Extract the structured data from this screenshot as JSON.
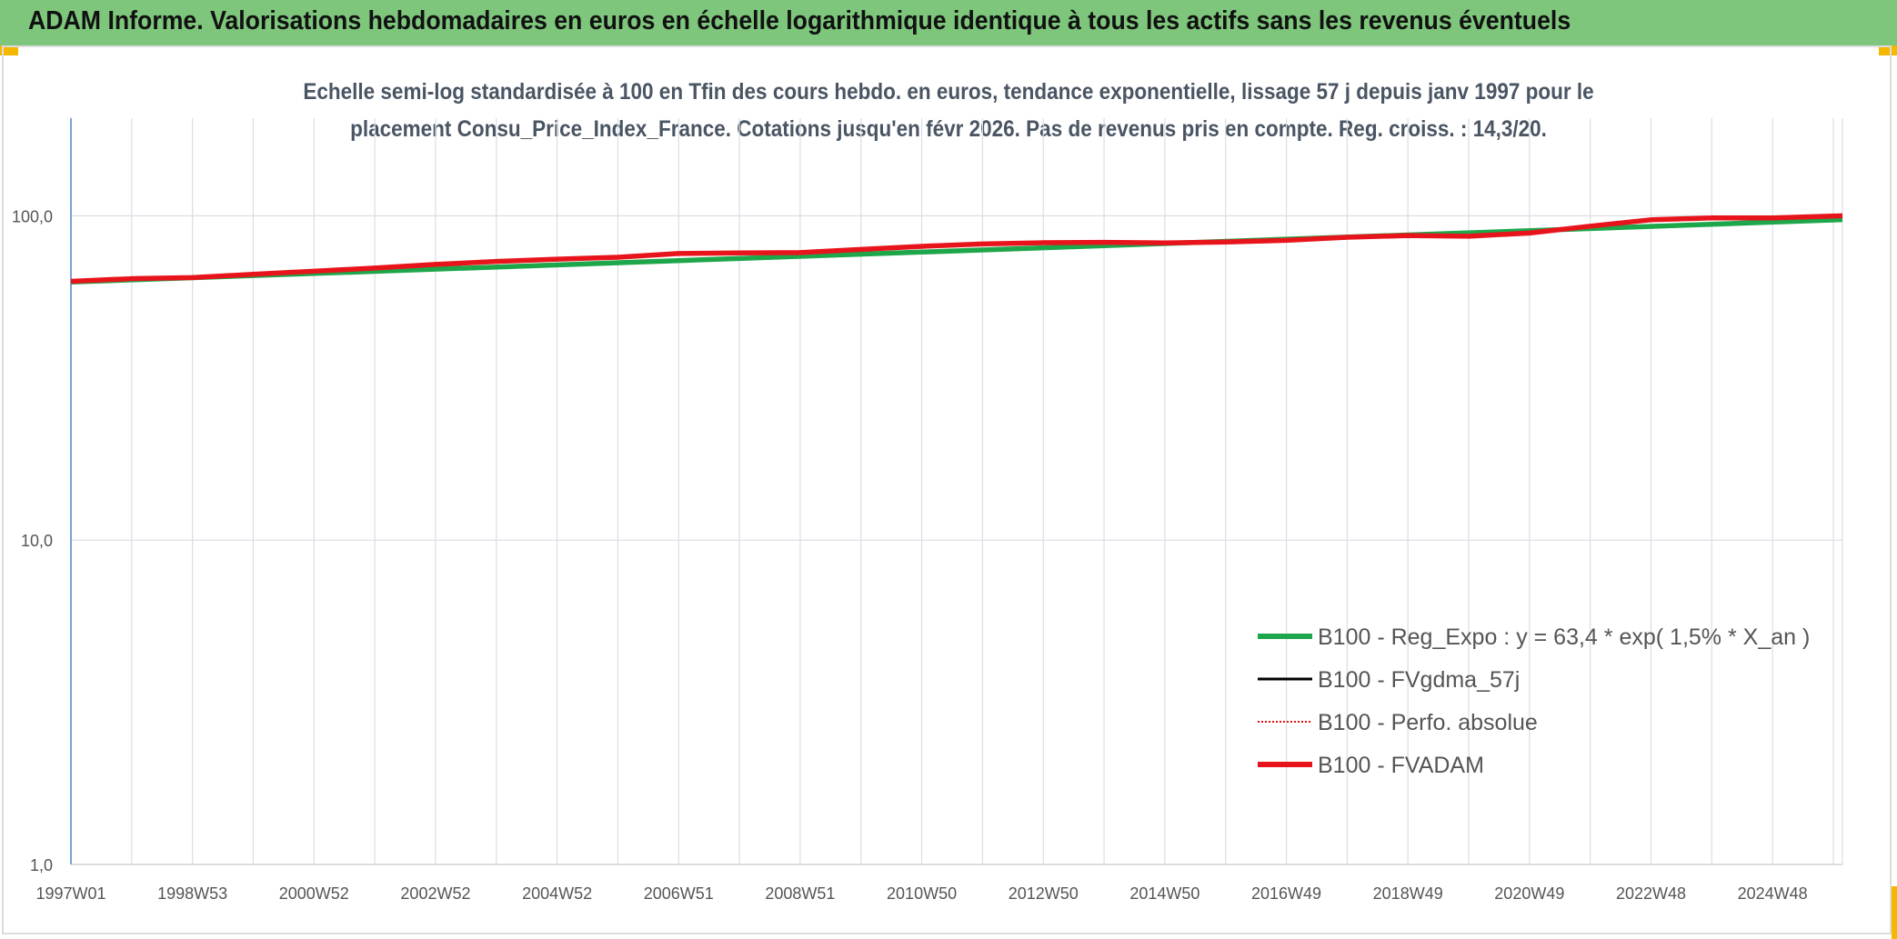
{
  "header": {
    "title": "ADAM Informe. Valorisations hebdomadaires en euros en échelle logarithmique identique à tous les actifs sans les revenus éventuels"
  },
  "chart_data": {
    "type": "line",
    "title_line1": "Echelle semi-log standardisée à 100 en Tfin des cours hebdo. en euros, tendance exponentielle, lissage 57 j depuis janv 1997 pour le",
    "title_line2": "placement Consu_Price_Index_France. Cotations jusqu'en févr 2026. Pas de revenus pris en compte. Reg. croiss. : 14,3/20.",
    "y_scale": "log",
    "ylim": [
      1,
      200
    ],
    "y_ticks": [
      1,
      10,
      100
    ],
    "y_tick_labels": [
      "1,0",
      "10,0",
      "100,0"
    ],
    "x_tick_labels": [
      "1997W01",
      "1998W53",
      "2000W52",
      "2002W52",
      "2004W52",
      "2006W51",
      "2008W51",
      "2010W50",
      "2012W50",
      "2014W50",
      "2016W49",
      "2018W49",
      "2020W49",
      "2022W48",
      "2024W48"
    ],
    "x_range_years": [
      1997.0,
      2026.15
    ],
    "grid": "vertical and horizontal",
    "legend_position": "lower-right",
    "series": [
      {
        "name": "B100 - Reg_Expo : y = 63,4 * exp( 1,5% *  X_an )",
        "color": "#1ea64b",
        "style": "solid-thick",
        "x": [
          1997.0,
          2026.15
        ],
        "y": [
          62.5,
          97.3
        ]
      },
      {
        "name": "B100 - FVgdma_57j",
        "color": "#000000",
        "style": "solid",
        "x": [],
        "y": []
      },
      {
        "name": "B100 - Perfo. absolue",
        "color": "#e01010",
        "style": "dotted",
        "x": [],
        "y": []
      },
      {
        "name": "B100 - FVADAM",
        "color": "#e8141b",
        "style": "solid-thick",
        "x": [
          1997.0,
          1998.0,
          1999.0,
          2000.0,
          2001.0,
          2002.0,
          2003.0,
          2004.0,
          2005.0,
          2006.0,
          2007.0,
          2008.0,
          2009.0,
          2010.0,
          2011.0,
          2012.0,
          2013.0,
          2014.0,
          2015.0,
          2016.0,
          2017.0,
          2018.0,
          2019.0,
          2020.0,
          2021.0,
          2022.0,
          2023.0,
          2024.0,
          2025.0,
          2026.15
        ],
        "y": [
          62.8,
          64.0,
          64.5,
          66.0,
          67.5,
          69.0,
          70.8,
          72.3,
          73.5,
          74.5,
          76.5,
          76.8,
          77.0,
          78.8,
          80.5,
          81.9,
          82.6,
          82.8,
          82.5,
          83.0,
          84.0,
          85.9,
          86.9,
          86.5,
          88.5,
          92.9,
          97.2,
          98.5,
          98.5,
          100.0
        ]
      }
    ]
  }
}
